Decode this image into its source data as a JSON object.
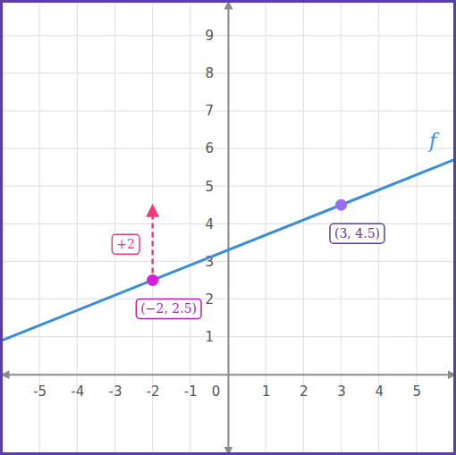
{
  "chart_data": {
    "type": "line",
    "xlim": [
      -6,
      6
    ],
    "ylim": [
      -2.1,
      9.9
    ],
    "xticks": [
      -5,
      -4,
      -3,
      -2,
      -1,
      0,
      1,
      2,
      3,
      4,
      5
    ],
    "yticks": [
      1,
      2,
      3,
      4,
      5,
      6,
      7,
      8,
      9
    ],
    "grid": true,
    "x": [
      -6,
      -2,
      3,
      6
    ],
    "series": [
      {
        "name": "f",
        "color": "#3b8ed8",
        "values": [
          0.9,
          2.5,
          4.5,
          5.7
        ]
      }
    ],
    "points": [
      {
        "x": -2,
        "y": 2.5,
        "label": "(−2, 2.5)",
        "color": "#d61fd6"
      },
      {
        "x": 3,
        "y": 4.5,
        "label": "(3, 4.5)",
        "color": "#9a6cf0"
      }
    ],
    "annotations": [
      {
        "text": "+2",
        "x": -2,
        "y": 2.5,
        "dy": 2,
        "color": "#f0397a"
      }
    ]
  }
}
